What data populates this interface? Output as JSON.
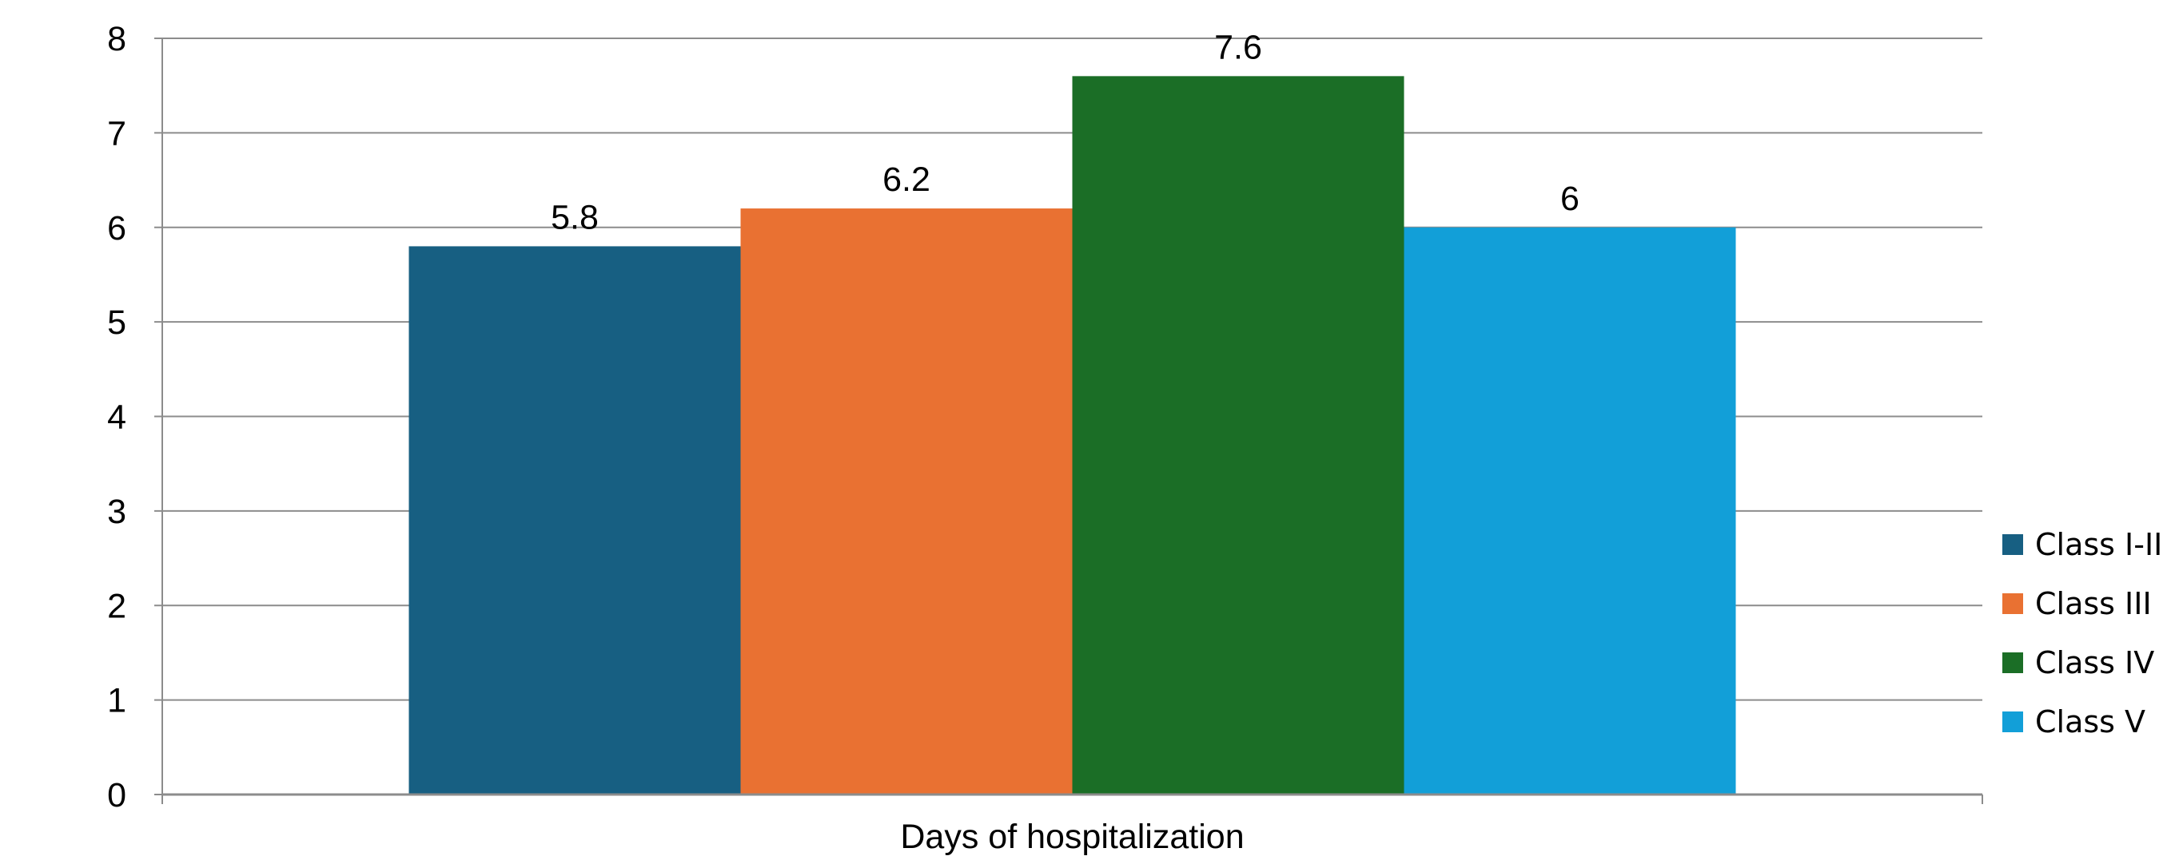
{
  "chart_data": {
    "type": "bar",
    "categories": [
      "Days of hospitalization"
    ],
    "series": [
      {
        "name": "Class I-II",
        "values": [
          5.8
        ],
        "color": "#175F82"
      },
      {
        "name": "Class III",
        "values": [
          6.2
        ],
        "color": "#E97132"
      },
      {
        "name": "Class IV",
        "values": [
          7.6
        ],
        "color": "#1B6E26"
      },
      {
        "name": "Class V",
        "values": [
          6
        ],
        "color": "#129FD8"
      }
    ],
    "data_labels": [
      "5.8",
      "6.2",
      "7.6",
      "6"
    ],
    "title": "",
    "xlabel": "",
    "ylabel": "",
    "ylim": [
      0,
      8
    ],
    "yticks": [
      0,
      1,
      2,
      3,
      4,
      5,
      6,
      7,
      8
    ],
    "grid": true,
    "legend_position": "right",
    "grid_color": "#8C8C8C"
  }
}
